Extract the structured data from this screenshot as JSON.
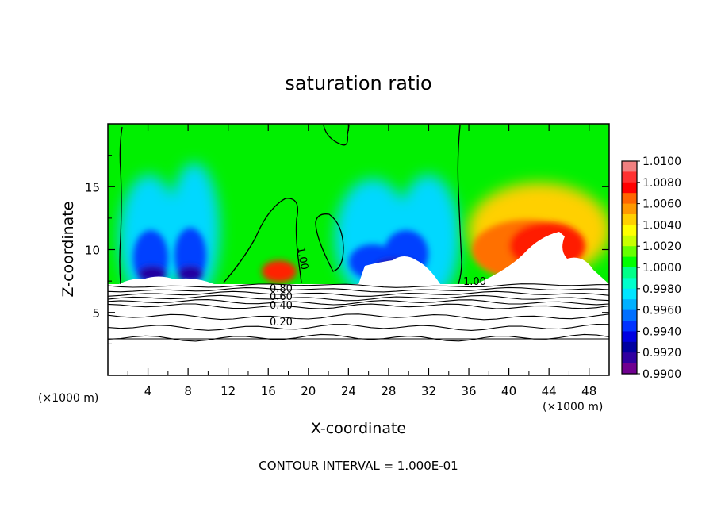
{
  "chart_data": {
    "type": "heatmap",
    "title": "saturation ratio",
    "xlabel": "X-coordinate",
    "ylabel": "Z-coordinate",
    "x_units_left": "(×1000 m)",
    "x_units_right": "(×1000 m)",
    "xlim": [
      0,
      50
    ],
    "ylim": [
      0,
      20
    ],
    "x_ticks": [
      4,
      8,
      12,
      16,
      20,
      24,
      28,
      32,
      36,
      40,
      44,
      48
    ],
    "y_ticks": [
      5,
      10,
      15
    ],
    "footer": "CONTOUR INTERVAL = 1.000E-01",
    "colorbar": {
      "ticks": [
        "1.0100",
        "1.0080",
        "1.0060",
        "1.0040",
        "1.0020",
        "1.0000",
        "0.9980",
        "0.9960",
        "0.9940",
        "0.9920",
        "0.9900"
      ],
      "colors": [
        "#f08080",
        "#ff3030",
        "#ff0000",
        "#ff6600",
        "#ff9900",
        "#ffd000",
        "#ffff00",
        "#c8ff00",
        "#66ff00",
        "#00ff00",
        "#00ff88",
        "#00ffcc",
        "#00e5ff",
        "#00b0ff",
        "#0070ff",
        "#0033ff",
        "#0000e0",
        "#0000a0",
        "#3000a0",
        "#700090"
      ]
    },
    "contour_labels": [
      "1.00",
      "1.00",
      "0.80",
      "0.60",
      "0.40",
      "0.20"
    ],
    "contour_levels_below_terrain": [
      0.9,
      0.8,
      0.7,
      0.6,
      0.5,
      0.4,
      0.3,
      0.2,
      0.1
    ]
  }
}
